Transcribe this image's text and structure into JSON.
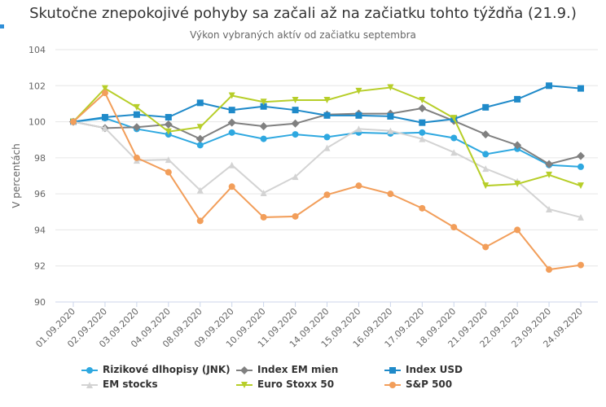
{
  "chart_data": {
    "type": "line",
    "title": "Skutočne znepokojivé pohyby sa začali až na začiatku tohto týždňa (21.9.)",
    "subtitle": "Výkon vybraných aktív od začiatku septembra",
    "ylabel": "V percentách",
    "xlabel": "",
    "ylim": [
      90,
      104
    ],
    "yticks": [
      90,
      92,
      94,
      96,
      98,
      100,
      102,
      104
    ],
    "grid": true,
    "legend_position": "bottom",
    "categories": [
      "01.09.2020",
      "02.09.2020",
      "03.09.2020",
      "04.09.2020",
      "08.09.2020",
      "09.09.2020",
      "10.09.2020",
      "11.09.2020",
      "14.09.2020",
      "15.09.2020",
      "16.09.2020",
      "17.09.2020",
      "18.09.2020",
      "21.09.2020",
      "22.09.2020",
      "23.09.2020",
      "24.09.2020"
    ],
    "series": [
      {
        "name": "Rizikové dlhopisy (JNK)",
        "color": "#2ea8e0",
        "marker": "circle",
        "values": [
          100,
          100.2,
          99.6,
          99.3,
          98.7,
          99.4,
          99.05,
          99.3,
          99.15,
          99.4,
          99.35,
          99.4,
          99.1,
          98.2,
          98.5,
          97.6,
          97.5
        ]
      },
      {
        "name": "Index EM mien",
        "color": "#808080",
        "marker": "diamond",
        "values": [
          100,
          99.65,
          99.7,
          99.85,
          99.05,
          99.95,
          99.75,
          99.9,
          100.4,
          100.45,
          100.45,
          100.75,
          100.05,
          99.3,
          98.7,
          97.65,
          98.1
        ]
      },
      {
        "name": "Index USD",
        "color": "#1f8ac9",
        "marker": "square",
        "values": [
          100,
          100.25,
          100.4,
          100.25,
          101.05,
          100.65,
          100.85,
          100.65,
          100.35,
          100.35,
          100.3,
          99.95,
          100.15,
          100.8,
          101.25,
          102,
          101.85
        ]
      },
      {
        "name": "EM stocks",
        "color": "#d3d3d3",
        "marker": "triangle",
        "values": [
          100,
          99.65,
          97.85,
          97.9,
          96.2,
          97.6,
          96.05,
          96.95,
          98.55,
          99.6,
          99.5,
          99.05,
          98.3,
          97.4,
          96.7,
          95.15,
          94.7
        ]
      },
      {
        "name": "Euro Stoxx 50",
        "color": "#b7ce29",
        "marker": "triangle-down",
        "values": [
          100,
          101.85,
          100.8,
          99.45,
          99.7,
          101.45,
          101.1,
          101.2,
          101.2,
          101.7,
          101.9,
          101.2,
          100.2,
          96.45,
          96.55,
          97.05,
          96.45
        ]
      },
      {
        "name": "S&P 500",
        "color": "#f29e5a",
        "marker": "circle",
        "values": [
          100,
          101.6,
          98,
          97.2,
          94.5,
          96.4,
          94.7,
          94.75,
          95.95,
          96.45,
          96,
          95.2,
          94.15,
          93.05,
          94,
          91.8,
          92.05
        ]
      }
    ]
  }
}
